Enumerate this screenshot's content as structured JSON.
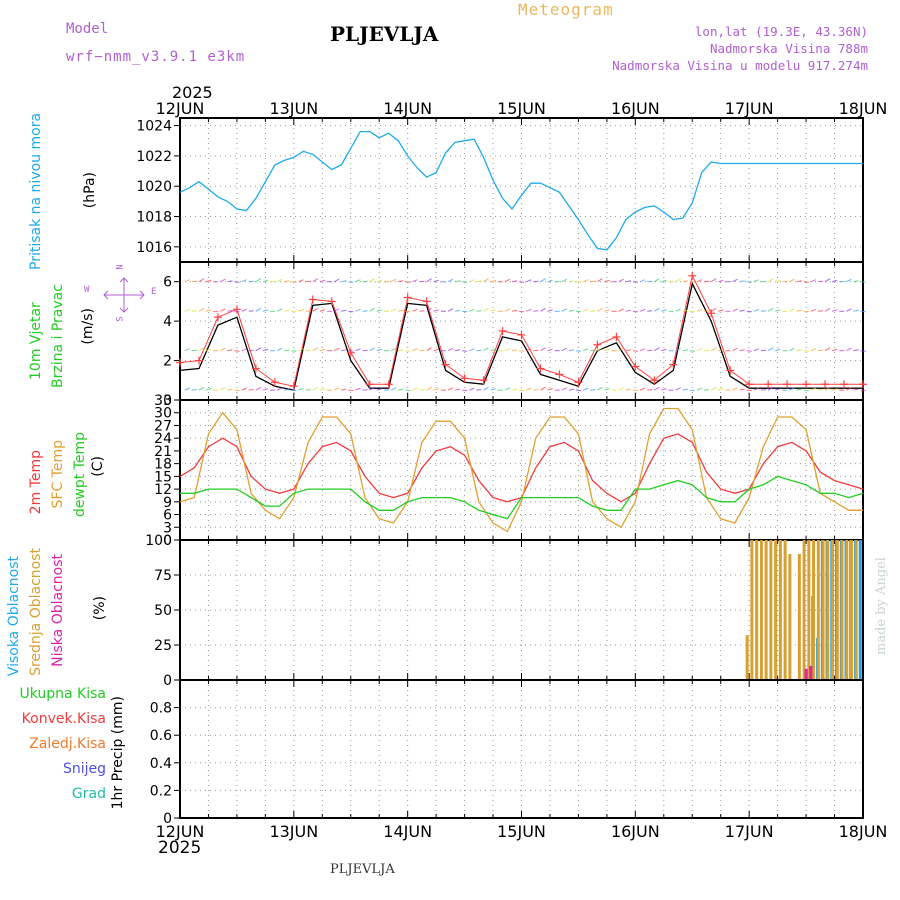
{
  "header": {
    "title": "PLJEVLJA",
    "meteogram_label": "Meteogram",
    "model_label": "Model",
    "model_value": "wrf−nmm_v3.9.1  e3km",
    "lonlat": "lon,lat (19.3E, 43.36N)",
    "altitude": "Nadmorska Visina 788m",
    "model_altitude": "Nadmorska Visina u modelu 917.274m",
    "year_top": "2025",
    "year_bottom": "2025",
    "footer": "PLJEVLJA",
    "watermark": "made by Angel"
  },
  "colors": {
    "pressure": "#1eaaea",
    "wind_speed": "#000000",
    "gust": "#ff4040",
    "temp2m": "#ee3c3c",
    "sfc_temp": "#e0a030",
    "dewpt": "#22cc22",
    "cloud_high": "#1e9ee8",
    "cloud_mid": "#d8a030",
    "cloud_low": "#dd22aa"
  },
  "chart_data": [
    {
      "id": "pressure",
      "type": "line",
      "ylabel": "(hPa)",
      "side_labels": [
        "Pritisak na nivou mora"
      ],
      "x": [
        0,
        2,
        4,
        6,
        8,
        10,
        12,
        14,
        16,
        18,
        20,
        22,
        24,
        26,
        28,
        30,
        32,
        34,
        36,
        38,
        40,
        42,
        44,
        46,
        48,
        50,
        52,
        54,
        56,
        58,
        60,
        62,
        64,
        66,
        68,
        70,
        72,
        74,
        76,
        78,
        80,
        82,
        84,
        86,
        88,
        90,
        92,
        94,
        96,
        98,
        100,
        102,
        104,
        106,
        108,
        110,
        112,
        114,
        116,
        118,
        120,
        122,
        124,
        126,
        128,
        130,
        132,
        134,
        136,
        138,
        140,
        142,
        144
      ],
      "series": [
        {
          "name": "Sea level pressure",
          "values": [
            1019.6,
            1019.9,
            1020.3,
            1019.8,
            1019.3,
            1019.0,
            1018.5,
            1018.4,
            1019.2,
            1020.3,
            1021.4,
            1021.7,
            1021.9,
            1022.3,
            1022.1,
            1021.6,
            1021.1,
            1021.4,
            1022.5,
            1023.6,
            1023.6,
            1023.2,
            1023.5,
            1023.0,
            1022.0,
            1021.2,
            1020.6,
            1020.9,
            1022.2,
            1022.9,
            1023.0,
            1023.1,
            1021.9,
            1020.4,
            1019.2,
            1018.5,
            1019.4,
            1020.2,
            1020.2,
            1019.9,
            1019.6,
            1018.7,
            1017.8,
            1016.8,
            1015.9,
            1015.8,
            1016.6,
            1017.8,
            1018.3,
            1018.6,
            1018.7,
            1018.3,
            1017.8,
            1017.9,
            1018.9,
            1020.9,
            1021.6,
            1021.5,
            1021.5,
            1021.5,
            1021.5,
            1021.5,
            1021.5,
            1021.5,
            1021.5,
            1021.5,
            1021.5,
            1021.5,
            1021.5,
            1021.5,
            1021.5,
            1021.5,
            1021.5
          ]
        }
      ],
      "ylim": [
        1015,
        1024.5
      ],
      "yticks": [
        1016,
        1018,
        1020,
        1022,
        1024
      ]
    },
    {
      "id": "wind",
      "type": "line",
      "ylabel": "(m/s)",
      "side_labels": [
        "10m Vjetar",
        "Brzina i Pravac"
      ],
      "compass": {
        "n": "N",
        "w": "W",
        "e": "E",
        "s": "S"
      },
      "x": [
        0,
        4,
        8,
        12,
        16,
        20,
        24,
        28,
        32,
        36,
        40,
        44,
        48,
        52,
        56,
        60,
        64,
        68,
        72,
        76,
        80,
        84,
        88,
        92,
        96,
        100,
        104,
        108,
        112,
        116,
        120,
        124,
        128,
        132,
        136,
        140,
        144
      ],
      "series": [
        {
          "name": "Wind speed",
          "values": [
            1.5,
            1.6,
            3.8,
            4.2,
            1.2,
            0.7,
            0.5,
            4.8,
            4.9,
            2.0,
            0.6,
            0.6,
            4.9,
            4.8,
            1.5,
            0.9,
            0.8,
            3.2,
            3.0,
            1.3,
            1.0,
            0.7,
            2.5,
            2.9,
            1.4,
            0.8,
            1.5,
            5.9,
            4.0,
            1.2,
            0.6,
            0.6,
            0.6,
            0.6,
            0.6,
            0.6,
            0.6
          ]
        },
        {
          "name": "Wind gust",
          "values": [
            1.9,
            2.0,
            4.2,
            4.6,
            1.6,
            0.9,
            0.7,
            5.1,
            5.0,
            2.4,
            0.8,
            0.8,
            5.2,
            5.0,
            1.8,
            1.1,
            1.0,
            3.5,
            3.3,
            1.6,
            1.3,
            0.9,
            2.8,
            3.2,
            1.7,
            1.0,
            1.8,
            6.3,
            4.4,
            1.5,
            0.8,
            0.8,
            0.8,
            0.8,
            0.8,
            0.8,
            0.8
          ]
        }
      ],
      "ylim": [
        0,
        7
      ],
      "yticks": [
        0,
        2,
        4,
        6
      ]
    },
    {
      "id": "temperature",
      "type": "line",
      "ylabel": "(C)",
      "side_labels": [
        "2m Temp",
        "SFC Temp",
        "dewpt Temp"
      ],
      "x": [
        0,
        3,
        6,
        9,
        12,
        15,
        18,
        21,
        24,
        27,
        30,
        33,
        36,
        39,
        42,
        45,
        48,
        51,
        54,
        57,
        60,
        63,
        66,
        69,
        72,
        75,
        78,
        81,
        84,
        87,
        90,
        93,
        96,
        99,
        102,
        105,
        108,
        111,
        114,
        117,
        120,
        123,
        126,
        129,
        132,
        135,
        138,
        141,
        144
      ],
      "series": [
        {
          "name": "2m Temp",
          "values": [
            15,
            17,
            22,
            24,
            22,
            15,
            12,
            11,
            12,
            18,
            22,
            23,
            21,
            15,
            11,
            10,
            11,
            17,
            21,
            22,
            20,
            14,
            10,
            9,
            10,
            17,
            22,
            23,
            21,
            14,
            11,
            9,
            11,
            18,
            24,
            25,
            23,
            16,
            12,
            11,
            12,
            18,
            22,
            23,
            21,
            16,
            14,
            13,
            12
          ]
        },
        {
          "name": "SFC Temp",
          "values": [
            9,
            10,
            25,
            30,
            26,
            11,
            7,
            5,
            10,
            23,
            29,
            29,
            25,
            10,
            5,
            4,
            9,
            23,
            28,
            28,
            24,
            9,
            4,
            2,
            9,
            24,
            29,
            29,
            25,
            9,
            5,
            3,
            9,
            25,
            31,
            31,
            26,
            10,
            5,
            4,
            10,
            22,
            29,
            29,
            26,
            11,
            9,
            7,
            7
          ]
        },
        {
          "name": "dewpt Temp",
          "values": [
            11,
            11,
            12,
            12,
            12,
            10,
            8,
            8,
            11,
            12,
            12,
            12,
            12,
            9,
            7,
            7,
            9,
            10,
            10,
            10,
            9,
            7,
            6,
            5,
            10,
            10,
            10,
            10,
            10,
            8,
            7,
            7,
            12,
            12,
            13,
            14,
            13,
            10,
            9,
            9,
            12,
            13,
            15,
            14,
            13,
            11,
            11,
            10,
            11
          ]
        }
      ],
      "ylim": [
        0,
        33
      ],
      "yticks": [
        0,
        3,
        6,
        9,
        12,
        15,
        18,
        21,
        24,
        27,
        30,
        33
      ]
    },
    {
      "id": "clouds",
      "type": "bar",
      "ylabel": "(%)",
      "side_labels": [
        "Visoka Oblacnost",
        "Srednja Oblacnost",
        "Niska Oblacnost"
      ],
      "x": [
        120,
        121,
        122,
        123,
        124,
        125,
        126,
        127,
        128,
        129,
        130,
        131,
        132,
        133,
        134,
        135,
        136,
        137,
        138,
        139,
        140,
        141,
        142,
        143
      ],
      "series": [
        {
          "name": "Visoka Oblacnost",
          "values": [
            0,
            0,
            0,
            0,
            0,
            0,
            0,
            0,
            0,
            0,
            0,
            0,
            0,
            60,
            30,
            100,
            100,
            100,
            100,
            100,
            100,
            100,
            100,
            100
          ]
        },
        {
          "name": "Srednja Oblacnost",
          "values": [
            32,
            100,
            100,
            100,
            100,
            100,
            100,
            100,
            100,
            90,
            0,
            90,
            100,
            100,
            100,
            100,
            100,
            100,
            100,
            100,
            100,
            100,
            100,
            100
          ]
        },
        {
          "name": "Niska Oblacnost",
          "values": [
            0,
            0,
            0,
            0,
            0,
            0,
            0,
            0,
            0,
            0,
            0,
            0,
            8,
            10,
            0,
            0,
            0,
            0,
            0,
            0,
            0,
            0,
            0,
            0
          ]
        }
      ],
      "ylim": [
        0,
        100
      ],
      "yticks": [
        0,
        25,
        50,
        75,
        100
      ]
    },
    {
      "id": "precip",
      "type": "bar",
      "ylabel": "1hr Precip (mm)",
      "side_labels": [
        "Ukupna Kisa",
        "Konvek.Kisa",
        "Zaledj.Kisa",
        "Snijeg",
        "Grad"
      ],
      "series": [
        {
          "name": "Ukupna Kisa",
          "values": []
        },
        {
          "name": "Konvek.Kisa",
          "values": []
        },
        {
          "name": "Zaledj.Kisa",
          "values": []
        },
        {
          "name": "Snijeg",
          "values": []
        },
        {
          "name": "Grad",
          "values": []
        }
      ],
      "ylim": [
        0,
        1
      ],
      "yticks": [
        0,
        0.2,
        0.4,
        0.6,
        0.8
      ]
    }
  ],
  "xaxis": {
    "range_hours": [
      0,
      144
    ],
    "tick_hours": [
      0,
      24,
      48,
      72,
      96,
      120,
      144
    ],
    "tick_labels": [
      "12JUN",
      "13JUN",
      "14JUN",
      "15JUN",
      "16JUN",
      "17JUN",
      "18JUN"
    ]
  }
}
